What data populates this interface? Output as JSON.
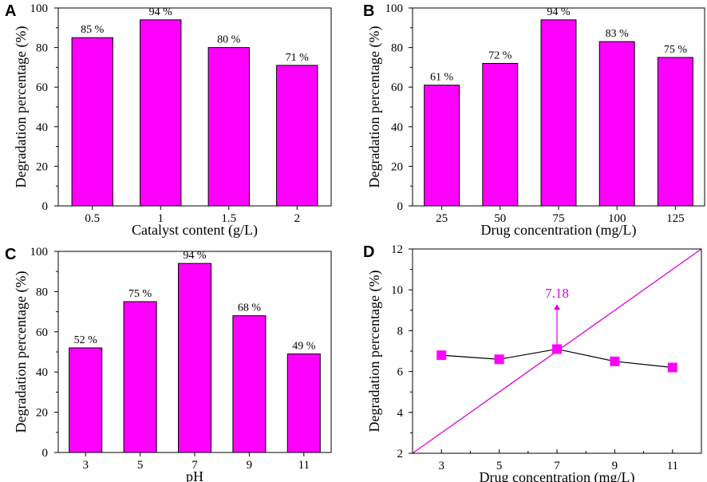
{
  "chart_data": [
    {
      "panel": "A",
      "type": "bar",
      "categories": [
        "0.5",
        "1",
        "1.5",
        "2"
      ],
      "values": [
        85,
        94,
        80,
        71
      ],
      "data_labels": [
        "85 %",
        "94 %",
        "80 %",
        "71 %"
      ],
      "xlabel": "Catalyst content (g/L)",
      "ylabel": "Degradation percentage (%)",
      "ylim": [
        0,
        100
      ],
      "yticks": [
        "0",
        "20",
        "40",
        "60",
        "80",
        "100"
      ],
      "bar_color": "#ff00ff"
    },
    {
      "panel": "B",
      "type": "bar",
      "categories": [
        "25",
        "50",
        "75",
        "100",
        "125"
      ],
      "values": [
        61,
        72,
        94,
        83,
        75
      ],
      "data_labels": [
        "61 %",
        "72 %",
        "94 %",
        "83 %",
        "75 %"
      ],
      "xlabel": "Drug concentration (mg/L)",
      "ylabel": "Degradation percentage (%)",
      "ylim": [
        0,
        100
      ],
      "yticks": [
        "0",
        "20",
        "40",
        "60",
        "80",
        "100"
      ],
      "bar_color": "#ff00ff"
    },
    {
      "panel": "C",
      "type": "bar",
      "categories": [
        "3",
        "5",
        "7",
        "9",
        "11"
      ],
      "values": [
        52,
        75,
        94,
        68,
        49
      ],
      "data_labels": [
        "52 %",
        "75 %",
        "94 %",
        "68 %",
        "49 %"
      ],
      "xlabel": "pH",
      "ylabel": "Degradation percentage (%)",
      "ylim": [
        0,
        100
      ],
      "yticks": [
        "0",
        "20",
        "40",
        "60",
        "80",
        "100"
      ],
      "bar_color": "#ff00ff"
    },
    {
      "panel": "D",
      "type": "line",
      "x": [
        3,
        5,
        7,
        9,
        11
      ],
      "xticks": [
        "3",
        "5",
        "7",
        "9",
        "11"
      ],
      "xlim": [
        2,
        12
      ],
      "series": [
        {
          "name": "points",
          "values": [
            6.8,
            6.6,
            7.1,
            6.5,
            6.2
          ],
          "color": "#ff00ff",
          "line_color": "#000000"
        }
      ],
      "reference_line": {
        "from": [
          2,
          2
        ],
        "to": [
          12,
          12
        ],
        "color": "#dd00dd"
      },
      "annotation": {
        "text": "7.18",
        "x": 7,
        "y": 7.18,
        "color": "#dd00dd"
      },
      "xlabel": "Drug concentration (mg/L)",
      "ylabel": "Degradation percentage (%)",
      "ylim": [
        2,
        12
      ],
      "yticks": [
        "2",
        "4",
        "6",
        "8",
        "10",
        "12"
      ]
    }
  ]
}
